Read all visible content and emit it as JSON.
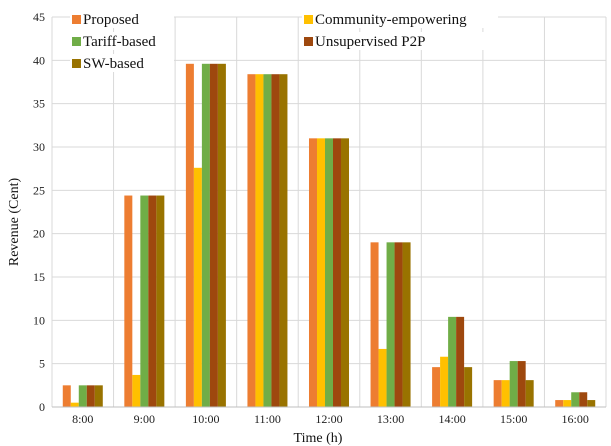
{
  "chart_data": {
    "type": "bar",
    "xlabel": "Time (h)",
    "ylabel": "Revenue (Cent)",
    "ylim": [
      0,
      45
    ],
    "yticks": [
      0,
      5,
      10,
      15,
      20,
      25,
      30,
      35,
      40,
      45
    ],
    "grid": true,
    "legend_position": "top-left",
    "categories": [
      "8:00",
      "9:00",
      "10:00",
      "11:00",
      "12:00",
      "13:00",
      "14:00",
      "15:00",
      "16:00"
    ],
    "series": [
      {
        "name": "Proposed",
        "color": "#ED7D31",
        "values": [
          2.5,
          24.4,
          39.6,
          38.4,
          31.0,
          19.0,
          4.6,
          3.1,
          0.8
        ]
      },
      {
        "name": "Community-empowering",
        "color": "#FFC000",
        "values": [
          0.5,
          3.7,
          27.6,
          38.4,
          31.0,
          6.7,
          5.8,
          3.1,
          0.8
        ]
      },
      {
        "name": "Tariff-based",
        "color": "#70AD47",
        "values": [
          2.5,
          24.4,
          39.6,
          38.4,
          31.0,
          19.0,
          10.4,
          5.3,
          1.7
        ]
      },
      {
        "name": "Unsupervised P2P",
        "color": "#9E480E",
        "values": [
          2.5,
          24.4,
          39.6,
          38.4,
          31.0,
          19.0,
          10.4,
          5.3,
          1.7
        ]
      },
      {
        "name": "SW-based",
        "color": "#997300",
        "values": [
          2.5,
          24.4,
          39.6,
          38.4,
          31.0,
          19.0,
          4.6,
          3.1,
          0.8
        ]
      }
    ]
  }
}
